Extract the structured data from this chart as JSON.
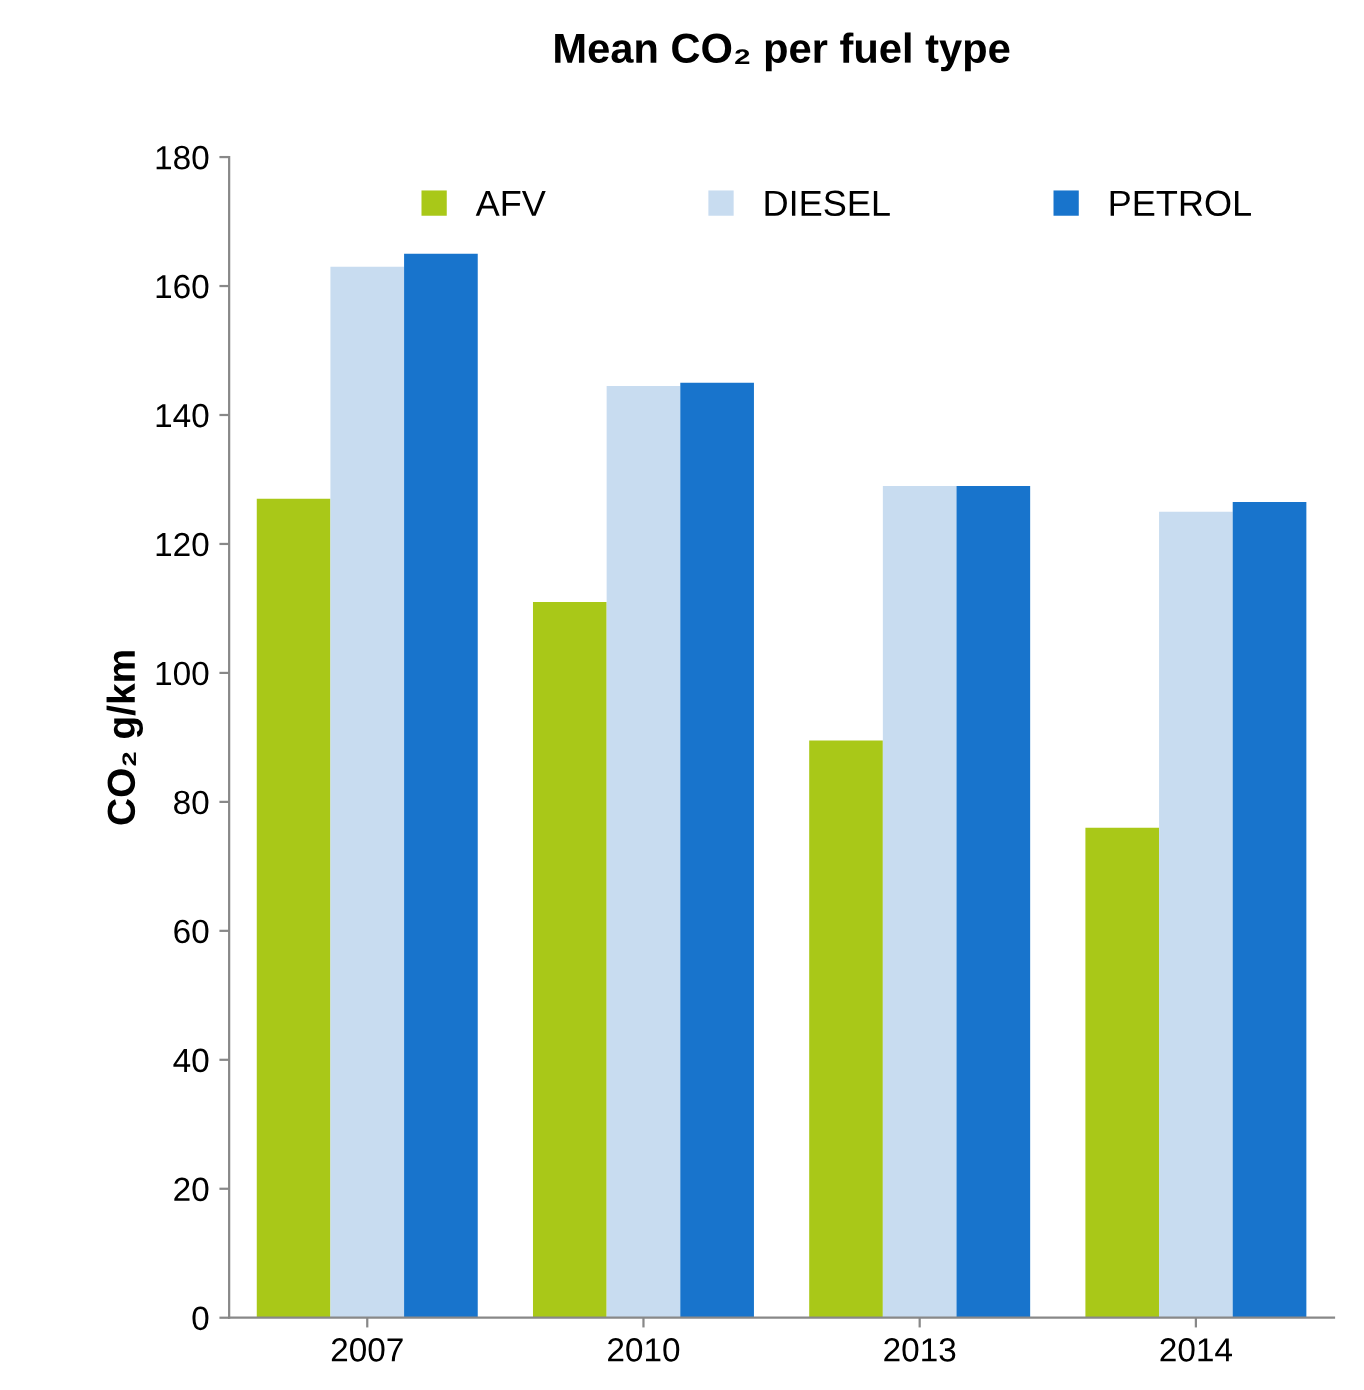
{
  "chart_data": {
    "type": "bar",
    "title": "Mean CO₂ per fuel type",
    "ylabel": "CO₂ g/km",
    "categories": [
      "2007",
      "2010",
      "2013",
      "2014"
    ],
    "series": [
      {
        "name": "AFV",
        "color": "#a9c818",
        "values": [
          127,
          111,
          89.5,
          76
        ]
      },
      {
        "name": "DIESEL",
        "color": "#c8dcf0",
        "values": [
          163,
          144.5,
          129,
          125
        ]
      },
      {
        "name": "PETROL",
        "color": "#1874cc",
        "values": [
          165,
          145,
          129,
          126.5
        ]
      }
    ],
    "ylim": [
      0,
      180
    ],
    "yticks": [
      0,
      20,
      40,
      60,
      80,
      100,
      120,
      140,
      160,
      180
    ],
    "grid": false,
    "legend": "top"
  }
}
